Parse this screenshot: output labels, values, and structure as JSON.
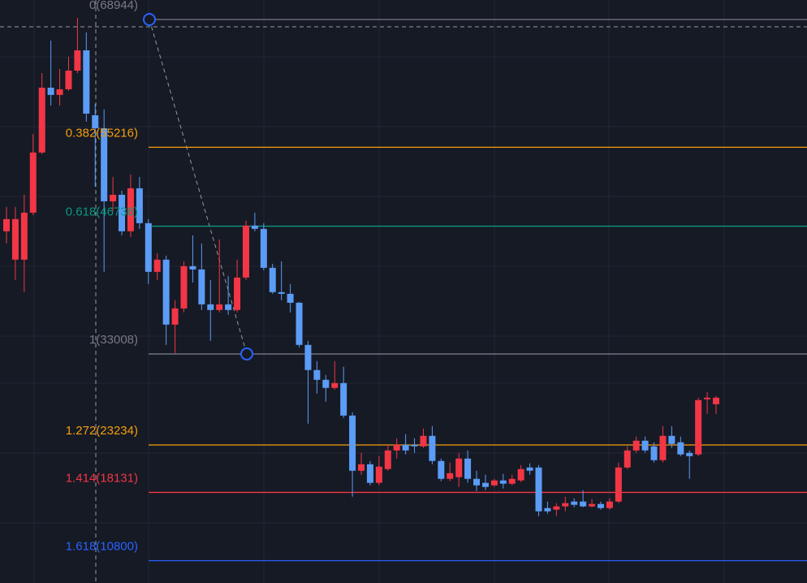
{
  "chart_data": {
    "type": "candlestick",
    "up_color": "#f23645",
    "down_color": "#5b9cf6",
    "ylim": [
      8400,
      71040
    ],
    "open": [
      46190,
      43140,
      43140,
      48190,
      54650,
      61620,
      60840,
      61450,
      63450,
      65630,
      58660,
      57260,
      49410,
      50110,
      46190,
      50810,
      47060,
      41830,
      43140,
      36160,
      37900,
      42440,
      42090,
      38340,
      37730,
      38340,
      37730,
      41220,
      46800,
      46450,
      42260,
      39650,
      39470,
      38510,
      33980,
      31280,
      30230,
      29360,
      29880,
      26390,
      20460,
      21160,
      19160,
      20640,
      22640,
      23250,
      23250,
      23080,
      24210,
      21510,
      19590,
      19770,
      21770,
      19590,
      19160,
      18890,
      19420,
      19070,
      19420,
      20810,
      20810,
      16450,
      16280,
      16630,
      17150,
      17150,
      16630,
      16890,
      16450,
      17150,
      20810,
      22640,
      23690,
      23080,
      21600,
      24210,
      23520,
      22380,
      22210,
      28140,
      27610
    ],
    "high": [
      48800,
      48800,
      50110,
      56650,
      63190,
      66680,
      63630,
      64940,
      69120,
      67550,
      59880,
      59270,
      52030,
      50550,
      52290,
      52030,
      47500,
      43830,
      43570,
      38780,
      42960,
      45750,
      44880,
      40960,
      45320,
      41390,
      43140,
      47320,
      48190,
      47060,
      42700,
      42960,
      40520,
      38600,
      34420,
      32240,
      30750,
      32240,
      31630,
      26740,
      22380,
      21510,
      22030,
      23250,
      23950,
      24390,
      23950,
      25000,
      25260,
      21770,
      21340,
      22380,
      22640,
      20460,
      20030,
      19590,
      20120,
      20030,
      21070,
      21250,
      21070,
      17150,
      16980,
      17670,
      17500,
      18370,
      17410,
      17150,
      17500,
      21340,
      23080,
      24130,
      24130,
      23520,
      25260,
      25260,
      24130,
      22640,
      28310,
      28920,
      28490
    ],
    "low": [
      44880,
      40960,
      39650,
      47930,
      54470,
      59700,
      59700,
      61270,
      63190,
      57960,
      50980,
      41830,
      48370,
      45750,
      45580,
      46450,
      40520,
      40960,
      33980,
      33110,
      37470,
      40690,
      37730,
      34420,
      37470,
      37210,
      37470,
      40960,
      46190,
      42000,
      39470,
      38780,
      37470,
      33720,
      25520,
      28750,
      27880,
      29180,
      26130,
      17670,
      20030,
      18890,
      18890,
      20460,
      21770,
      22210,
      22380,
      22910,
      21160,
      19330,
      19330,
      18720,
      19160,
      18280,
      18370,
      18720,
      18550,
      18890,
      19240,
      20030,
      15580,
      15840,
      15580,
      16100,
      16540,
      16540,
      16540,
      16280,
      16280,
      16980,
      20640,
      22380,
      22380,
      21340,
      21340,
      22910,
      22030,
      19590,
      22030,
      26570,
      26570
    ],
    "close": [
      47500,
      47500,
      48190,
      54650,
      61620,
      60840,
      61450,
      63450,
      65630,
      58830,
      57260,
      49410,
      50110,
      46190,
      50810,
      47060,
      41830,
      43140,
      36160,
      37900,
      42440,
      42090,
      38340,
      37730,
      38340,
      37730,
      41220,
      46800,
      46450,
      42260,
      39650,
      39470,
      38510,
      33980,
      31280,
      30230,
      29360,
      29880,
      26390,
      20460,
      21160,
      19160,
      20900,
      22640,
      23250,
      22640,
      23080,
      24210,
      21510,
      19590,
      20200,
      21770,
      19590,
      18890,
      18720,
      19420,
      19070,
      19590,
      20640,
      20460,
      16100,
      16100,
      16630,
      16980,
      16800,
      16630,
      16890,
      16450,
      17150,
      20810,
      22640,
      23690,
      22640,
      21600,
      24210,
      23340,
      22210,
      22030,
      28050,
      28310,
      28310
    ],
    "fib_levels": [
      {
        "label": "0(68944)",
        "price": 68944,
        "color": "#787b86"
      },
      {
        "label": "0.382(55216)",
        "price": 55216,
        "color": "#f59d0c"
      },
      {
        "label": "0.618(46736)",
        "price": 46736,
        "color": "#089981"
      },
      {
        "label": "1(33008)",
        "price": 33008,
        "color": "#787b86"
      },
      {
        "label": "1.272(23234)",
        "price": 23234,
        "color": "#f59d0c"
      },
      {
        "label": "1.414(18131)",
        "price": 18131,
        "color": "#f23645"
      },
      {
        "label": "1.618(10800)",
        "price": 10800,
        "color": "#2962ff"
      }
    ]
  }
}
